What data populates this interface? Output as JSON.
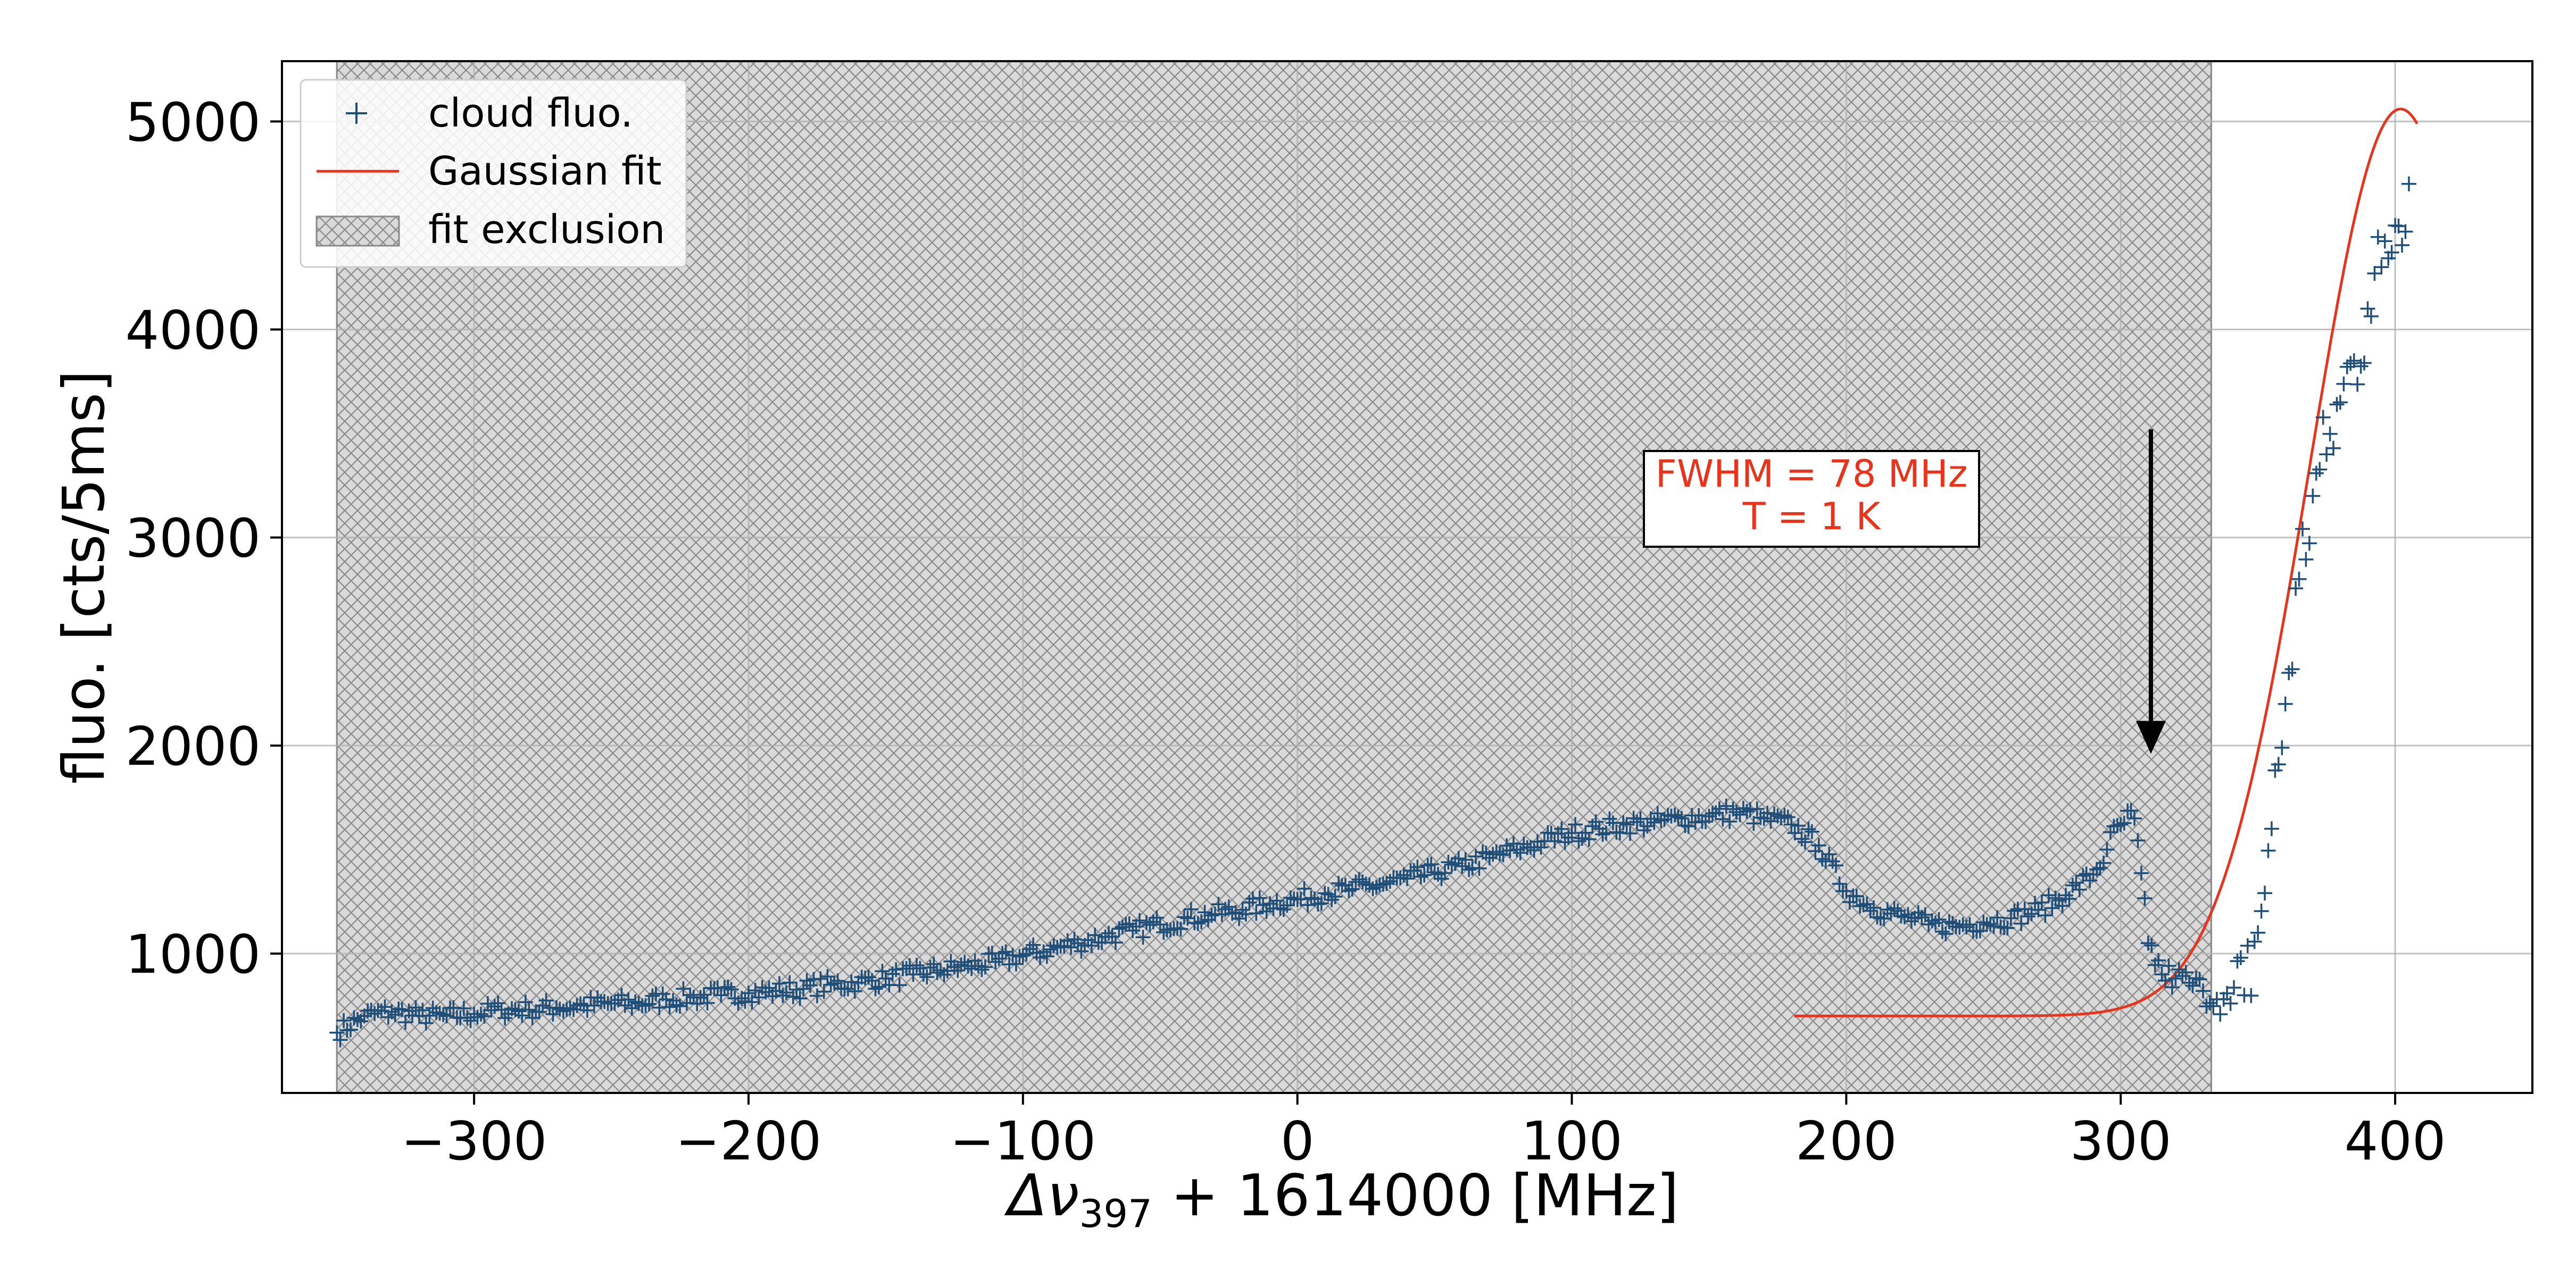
{
  "chart_data": {
    "type": "scatter",
    "title": "",
    "xlabel_symbol": "Δν",
    "xlabel_subscript": "397",
    "xlabel_rest": " + 1614000 [MHz]",
    "ylabel": "fluo. [cts/5ms]",
    "xlim": [
      -370,
      450
    ],
    "ylim": [
      330,
      5290
    ],
    "xticks": [
      -300,
      -200,
      -100,
      0,
      100,
      200,
      300,
      400
    ],
    "xtick_labels": [
      "−300",
      "−200",
      "−100",
      "0",
      "100",
      "200",
      "300",
      "400"
    ],
    "yticks": [
      1000,
      2000,
      3000,
      4000,
      5000
    ],
    "ytick_labels": [
      "1000",
      "2000",
      "3000",
      "4000",
      "5000"
    ],
    "grid": true,
    "legend_position": "top-left",
    "colors": {
      "data": "#1f4e79",
      "fit": "#e8341c",
      "exclusion_fill": "#d9d9d9",
      "exclusion_hatch": "#8a8a8a",
      "annotation_text": "#e8341c",
      "arrow": "#000000"
    },
    "series": [
      {
        "name": "cloud fluo.",
        "kind": "scatter",
        "marker": "+",
        "x": [
          -350,
          -340,
          -330,
          -320,
          -310,
          -300,
          -290,
          -280,
          -270,
          -260,
          -250,
          -240,
          -230,
          -220,
          -210,
          -200,
          -190,
          -180,
          -170,
          -160,
          -150,
          -140,
          -130,
          -120,
          -110,
          -100,
          -90,
          -80,
          -70,
          -60,
          -50,
          -40,
          -30,
          -20,
          -10,
          0,
          10,
          20,
          30,
          40,
          50,
          60,
          70,
          80,
          90,
          100,
          110,
          120,
          130,
          140,
          150,
          160,
          170,
          180,
          190,
          200,
          210,
          220,
          230,
          240,
          250,
          260,
          270,
          280,
          290,
          295,
          300,
          305,
          310,
          315,
          320,
          325,
          330,
          335,
          340,
          345,
          350,
          355,
          360,
          365,
          370,
          375,
          380,
          385,
          390,
          395,
          400,
          405
        ],
        "y": [
          620,
          700,
          720,
          700,
          700,
          710,
          730,
          730,
          740,
          750,
          760,
          760,
          780,
          790,
          800,
          810,
          820,
          830,
          850,
          860,
          880,
          900,
          920,
          940,
          960,
          990,
          1020,
          1050,
          1080,
          1110,
          1140,
          1170,
          1190,
          1210,
          1240,
          1260,
          1290,
          1310,
          1330,
          1360,
          1390,
          1420,
          1460,
          1500,
          1540,
          1580,
          1600,
          1620,
          1630,
          1650,
          1660,
          1680,
          1650,
          1620,
          1520,
          1300,
          1220,
          1180,
          1140,
          1130,
          1150,
          1170,
          1210,
          1280,
          1380,
          1500,
          1620,
          1650,
          1050,
          900,
          880,
          860,
          820,
          780,
          760,
          800,
          1100,
          1600,
          2200,
          2800,
          3200,
          3400,
          3650,
          3850,
          4100,
          4300,
          4500,
          4700
        ]
      },
      {
        "name": "Gaussian fit",
        "kind": "line",
        "fn": "gaussian",
        "baseline": 700,
        "amplitude": 4360,
        "center": 402,
        "fwhm": 78,
        "x_range": [
          181,
          408
        ]
      }
    ],
    "exclusion": {
      "name": "fit exclusion",
      "x_range": [
        -350,
        333
      ]
    },
    "annotations": [
      {
        "text_line1": "FWHM = 78 MHz",
        "text_line2": "T = 1 K"
      }
    ],
    "arrow": {
      "x": 311,
      "y_start": 3520,
      "y_end": 1960
    }
  }
}
